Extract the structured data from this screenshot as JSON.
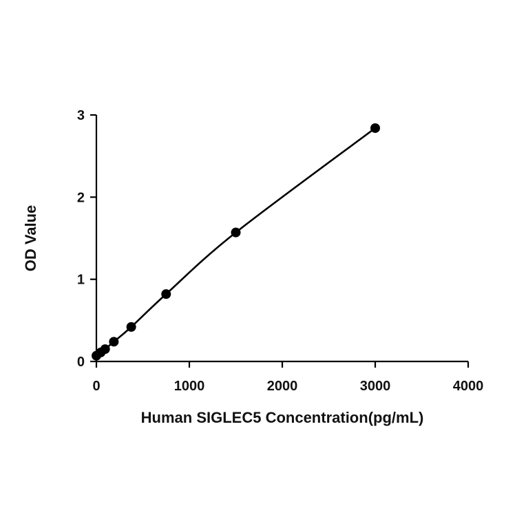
{
  "chart_data": {
    "type": "scatter",
    "xlabel": "Human SIGLEC5 Concentration(pg/mL)",
    "ylabel": "OD Value",
    "xlim": [
      0,
      4000
    ],
    "ylim": [
      0,
      3
    ],
    "xticks": [
      0,
      1000,
      2000,
      3000,
      4000
    ],
    "yticks": [
      0,
      1,
      2,
      3
    ],
    "xtick_labels": [
      "0",
      "1000",
      "2000",
      "3000",
      "4000"
    ],
    "ytick_labels": [
      "0",
      "1",
      "2",
      "3"
    ],
    "grid": false,
    "fit_curve": true,
    "series": [
      {
        "x": [
          0,
          47,
          94,
          188,
          375,
          750,
          1500,
          3000
        ],
        "y": [
          0.07,
          0.11,
          0.15,
          0.24,
          0.42,
          0.82,
          1.57,
          2.84
        ]
      }
    ],
    "colors": {
      "point": "#000000",
      "line": "#000000"
    }
  }
}
